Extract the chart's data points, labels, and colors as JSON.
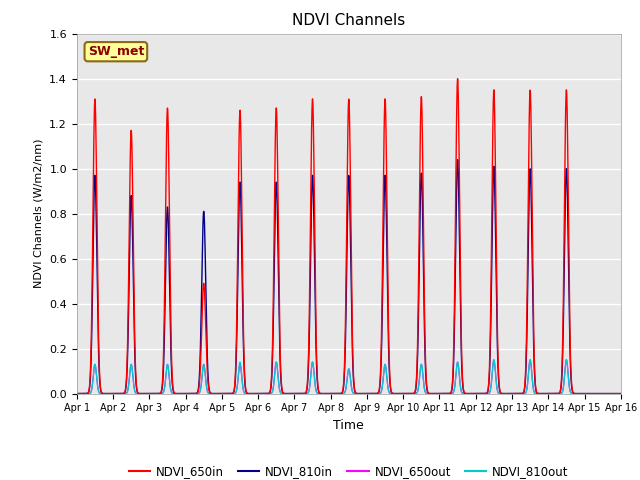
{
  "title": "NDVI Channels",
  "xlabel": "Time",
  "ylabel": "NDVI Channels (W/m2/nm)",
  "ylim": [
    0,
    1.6
  ],
  "annotation_text": "SW_met",
  "annotation_color": "#8B0000",
  "annotation_bg": "#FFFF99",
  "legend_labels": [
    "NDVI_650in",
    "NDVI_810in",
    "NDVI_650out",
    "NDVI_810out"
  ],
  "line_colors": {
    "NDVI_650in": "#FF0000",
    "NDVI_810in": "#00008B",
    "NDVI_650out": "#FF00FF",
    "NDVI_810out": "#00CCCC"
  },
  "xtick_labels": [
    "Apr 1",
    "Apr 2",
    "Apr 3",
    "Apr 4",
    "Apr 5",
    "Apr 6",
    "Apr 7",
    "Apr 8",
    "Apr 9",
    "Apr 10",
    "Apr 11",
    "Apr 12",
    "Apr 13",
    "Apr 14",
    "Apr 15",
    "Apr 16"
  ],
  "ytick_values": [
    0.0,
    0.2,
    0.4,
    0.6,
    0.8,
    1.0,
    1.2,
    1.4,
    1.6
  ],
  "peak_650in": [
    1.31,
    1.17,
    1.27,
    0.49,
    1.26,
    1.27,
    1.31,
    1.31,
    1.31,
    1.32,
    1.4,
    1.35,
    1.35,
    1.35
  ],
  "peak_810in": [
    0.97,
    0.88,
    0.83,
    0.81,
    0.94,
    0.94,
    0.97,
    0.97,
    0.97,
    0.98,
    1.04,
    1.01,
    1.0,
    1.0
  ],
  "peak_650out": [
    0.13,
    0.13,
    0.13,
    0.13,
    0.13,
    0.14,
    0.14,
    0.11,
    0.13,
    0.13,
    0.14,
    0.15,
    0.15,
    0.15
  ],
  "peak_810out": [
    0.13,
    0.13,
    0.13,
    0.13,
    0.14,
    0.14,
    0.14,
    0.11,
    0.13,
    0.13,
    0.14,
    0.15,
    0.15,
    0.15
  ],
  "background_color": "#E8E8E8",
  "grid_color": "#FFFFFF",
  "sigma_in": 0.055,
  "sigma_out": 0.045
}
